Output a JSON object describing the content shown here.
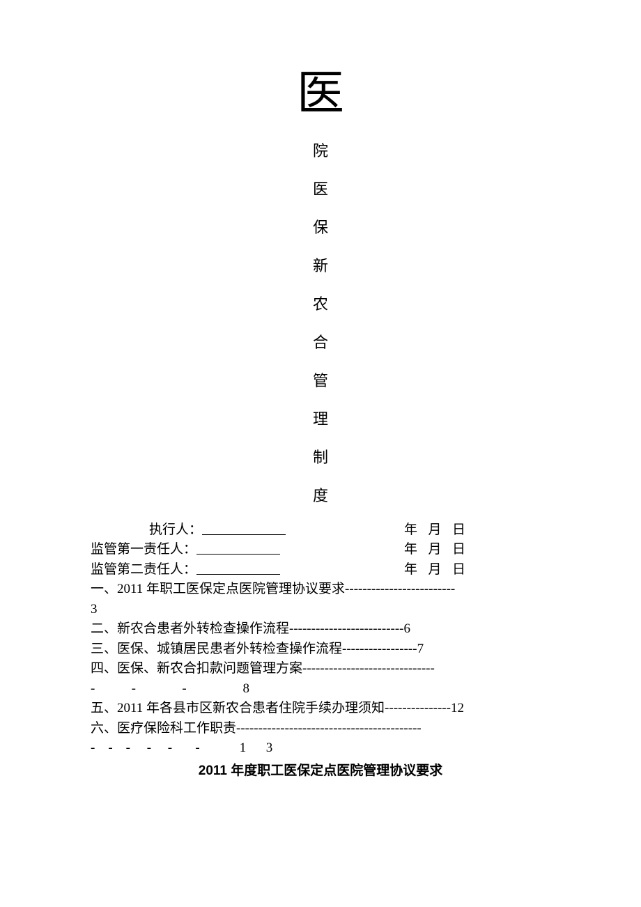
{
  "title_block": {
    "large_char": "医",
    "chars": [
      "院",
      "医",
      "保",
      "新",
      "农",
      "合",
      "管",
      "理",
      "制",
      "度"
    ],
    "large_fontsize": 68,
    "char_fontsize": 22
  },
  "signatures": [
    {
      "label": "执行人：",
      "indent_class": "indent1",
      "date": "年  月  日"
    },
    {
      "label": "监管第一责任人：",
      "indent_class": "indent0",
      "date": "年  月  日"
    },
    {
      "label": "监管第二责任人：",
      "indent_class": "indent0",
      "date": "年  月  日"
    }
  ],
  "toc": [
    {
      "type": "wrap",
      "text": "一、2011 年职工医保定点医院管理协议要求-------------------------",
      "page": "3"
    },
    {
      "type": "single",
      "text": "二、新农合患者外转检查操作流程--------------------------6"
    },
    {
      "type": "single",
      "text": "三、医保、城镇居民患者外转检查操作流程-----------------7"
    },
    {
      "type": "wrap_dash",
      "text": "四、医保、新农合扣款问题管理方案------------------------------",
      "dash_line": "-           -              -                 8"
    },
    {
      "type": "single",
      "text": "五、2011 年各县市区新农合患者住院手续办理须知---------------12"
    },
    {
      "type": "wrap_dash",
      "text": "六、医疗保险科工作职责------------------------------------------",
      "dash_line": "-    -    -     -     -       -            1      3"
    }
  ],
  "heading": "2011 年度职工医保定点医院管理协议要求",
  "colors": {
    "text": "#000000",
    "background": "#ffffff"
  },
  "fonts": {
    "body_family": "SimSun",
    "body_size": 19,
    "heading_family": "SimHei"
  }
}
